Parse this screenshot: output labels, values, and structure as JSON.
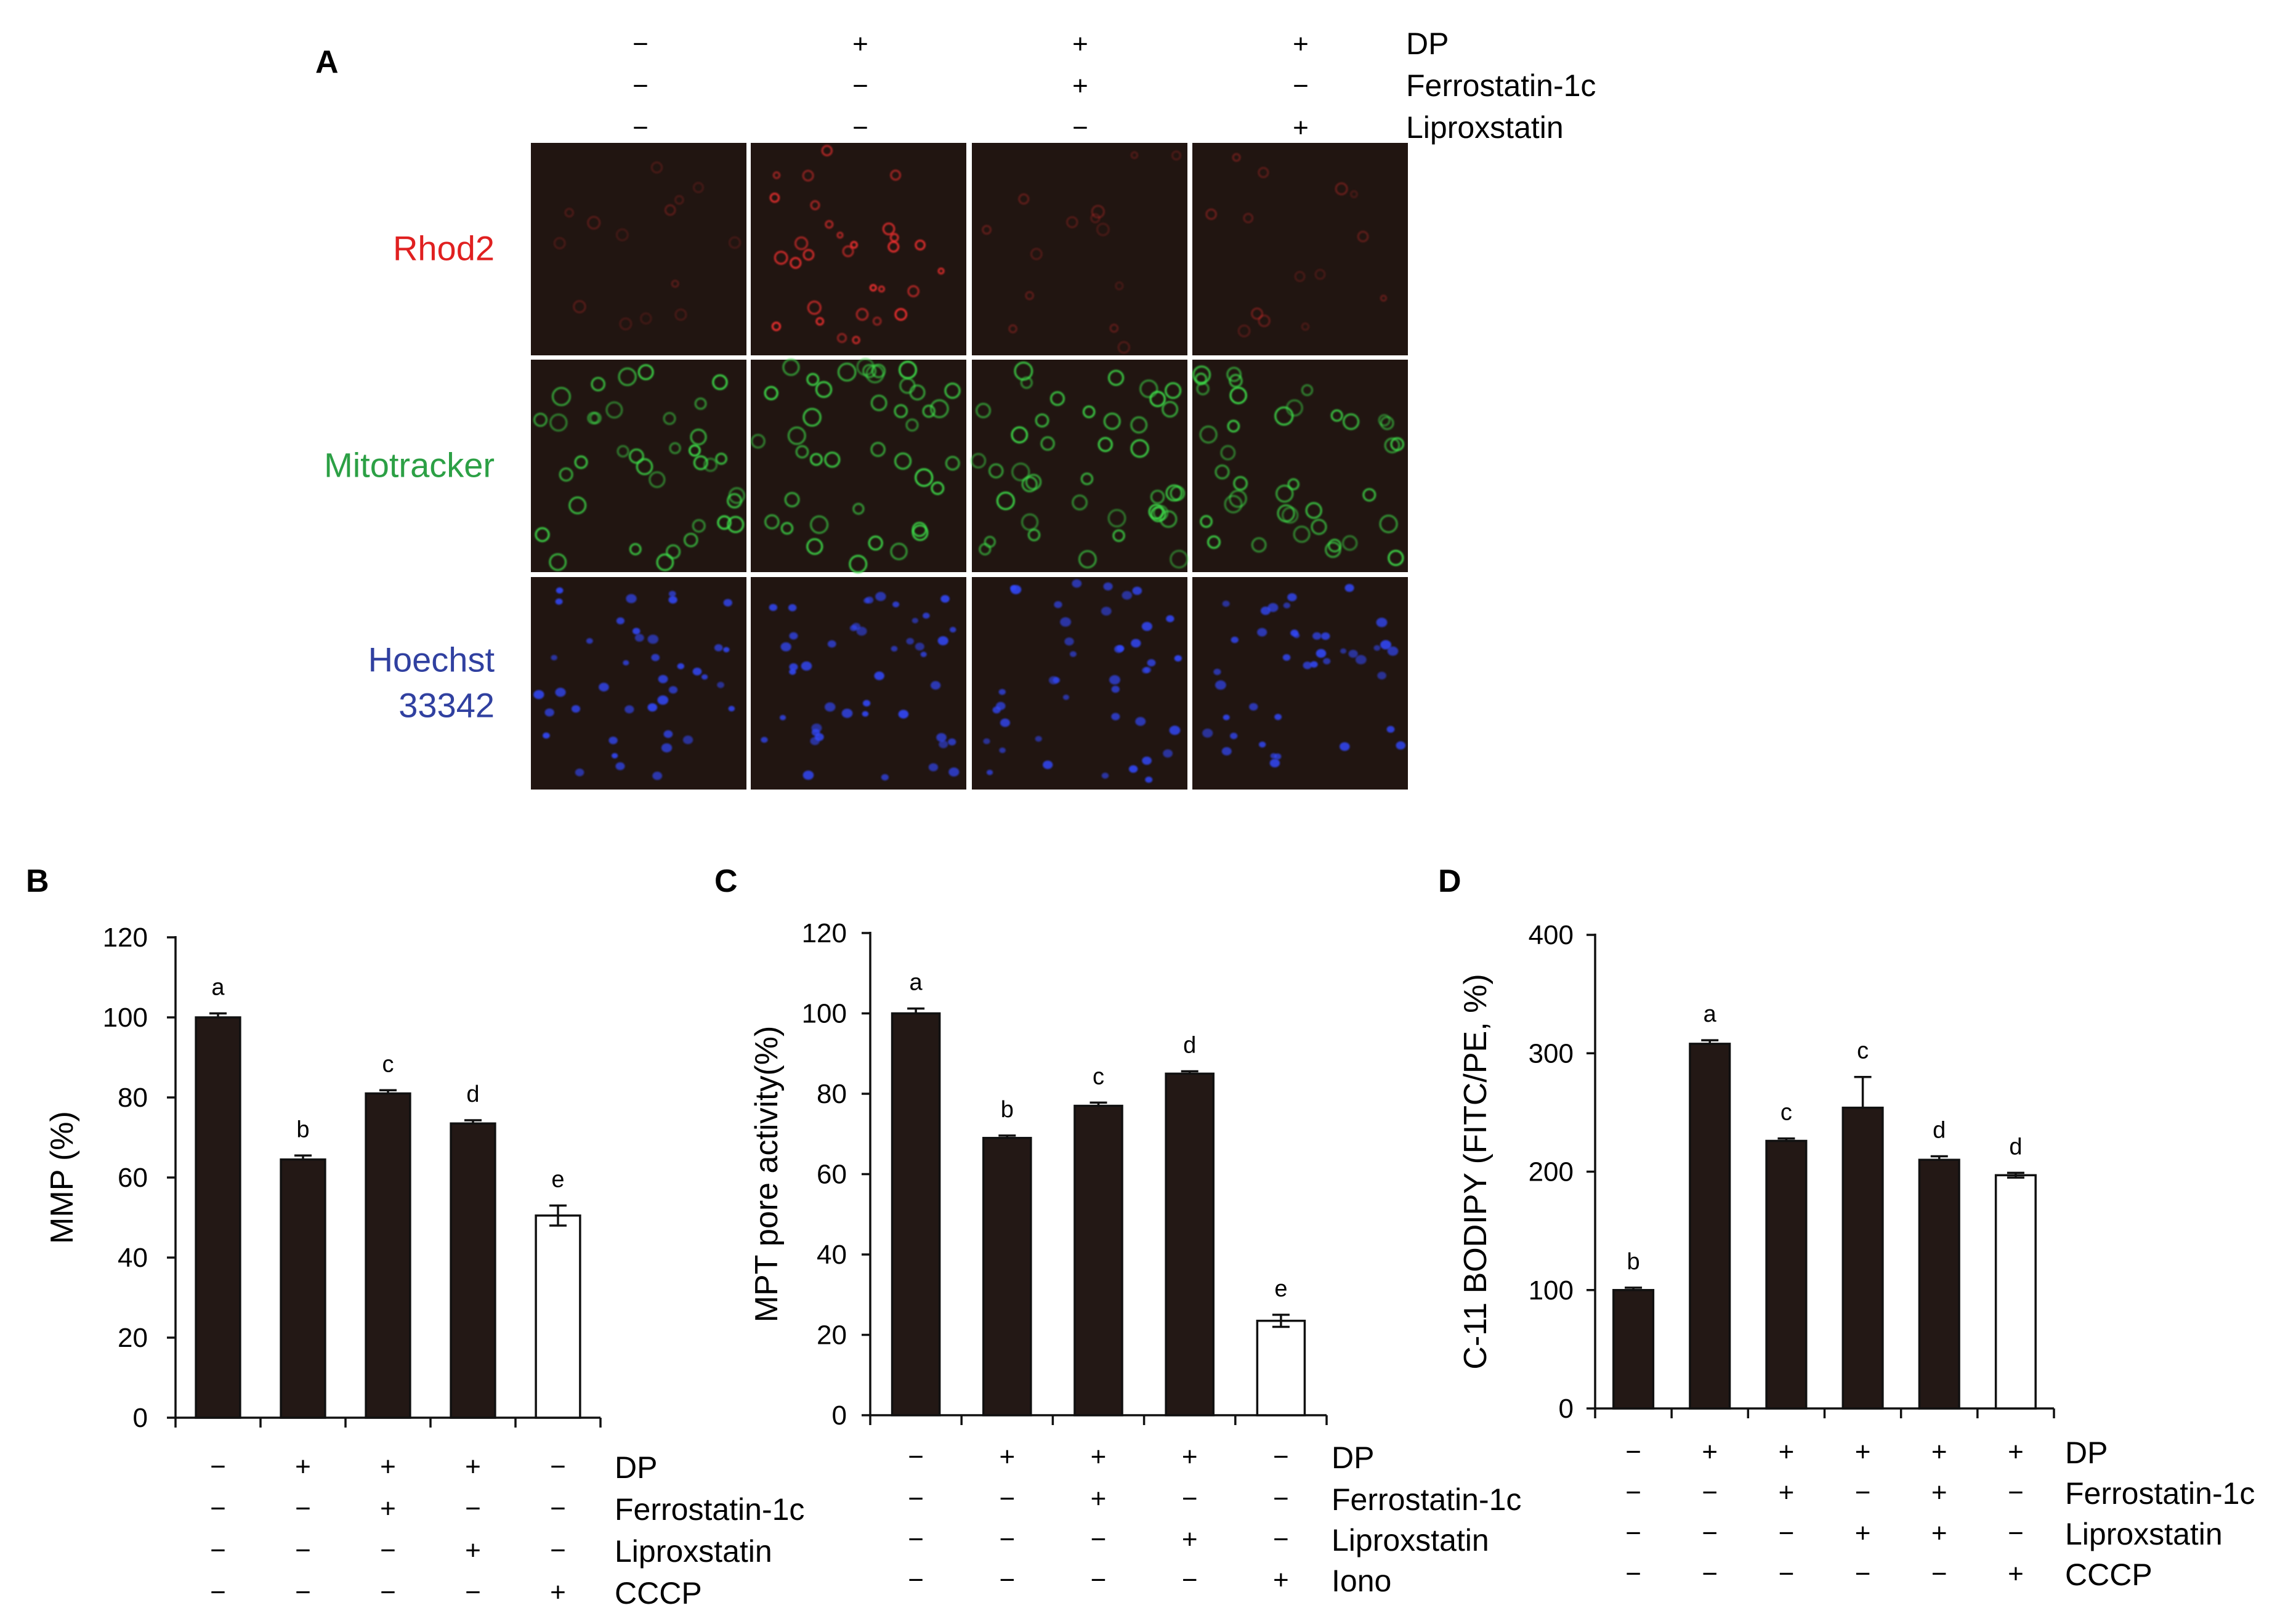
{
  "panel_a": {
    "letter": "A",
    "treatments": [
      {
        "name": "DP",
        "signs": [
          "−",
          "+",
          "+",
          "+"
        ]
      },
      {
        "name": "Ferrostatin-1c",
        "signs": [
          "−",
          "−",
          "+",
          "−"
        ]
      },
      {
        "name": "Liproxstatin",
        "signs": [
          "−",
          "−",
          "−",
          "+"
        ]
      }
    ],
    "rows": [
      {
        "label_lines": [
          "Rhod2"
        ],
        "color": "#e02020",
        "cell_color": "#ff3030"
      },
      {
        "label_lines": [
          "Mitotracker"
        ],
        "color": "#2ca045",
        "cell_color": "#3ddc4a"
      },
      {
        "label_lines": [
          "Hoechst",
          "33342"
        ],
        "color": "#3040a0",
        "cell_color": "#3348ff"
      }
    ],
    "image_background": "#211511"
  },
  "chart_data": [
    {
      "letter": "B",
      "type": "bar",
      "ylabel": "MMP (%)",
      "ylim": [
        0,
        120
      ],
      "yticks": [
        0,
        20,
        40,
        60,
        80,
        100,
        120
      ],
      "values": [
        100,
        64.5,
        81,
        73.5,
        50.5
      ],
      "errors": [
        1,
        1,
        0.8,
        0.8,
        2.5
      ],
      "letters": [
        "a",
        "b",
        "c",
        "d",
        "e"
      ],
      "fills": [
        "#231815",
        "#231815",
        "#231815",
        "#231815",
        "#ffffff"
      ],
      "treatments": [
        {
          "name": "DP",
          "signs": [
            "−",
            "+",
            "+",
            "+",
            "−"
          ]
        },
        {
          "name": "Ferrostatin-1c",
          "signs": [
            "−",
            "−",
            "+",
            "−",
            "−"
          ]
        },
        {
          "name": "Liproxstatin",
          "signs": [
            "−",
            "−",
            "−",
            "+",
            "−"
          ]
        },
        {
          "name": "CCCP",
          "signs": [
            "−",
            "−",
            "−",
            "−",
            "+"
          ]
        }
      ]
    },
    {
      "letter": "C",
      "type": "bar",
      "ylabel": "MPT pore activity(%)",
      "ylim": [
        0,
        120
      ],
      "yticks": [
        0,
        20,
        40,
        60,
        80,
        100,
        120
      ],
      "values": [
        100,
        69,
        77,
        85,
        23.5
      ],
      "errors": [
        1.2,
        0.6,
        0.8,
        0.6,
        1.5
      ],
      "letters": [
        "a",
        "b",
        "c",
        "d",
        "e"
      ],
      "fills": [
        "#231815",
        "#231815",
        "#231815",
        "#231815",
        "#ffffff"
      ],
      "treatments": [
        {
          "name": "DP",
          "signs": [
            "−",
            "+",
            "+",
            "+",
            "−"
          ]
        },
        {
          "name": "Ferrostatin-1c",
          "signs": [
            "−",
            "−",
            "+",
            "−",
            "−"
          ]
        },
        {
          "name": "Liproxstatin",
          "signs": [
            "−",
            "−",
            "−",
            "+",
            "−"
          ]
        },
        {
          "name": "Iono",
          "signs": [
            "−",
            "−",
            "−",
            "−",
            "+"
          ]
        }
      ]
    },
    {
      "letter": "D",
      "type": "bar",
      "ylabel": "C-11 BODIPY (FITC/PE, %)",
      "ylim": [
        0,
        400
      ],
      "yticks": [
        0,
        100,
        200,
        300,
        400
      ],
      "values": [
        100,
        308,
        226,
        254,
        210,
        197
      ],
      "errors": [
        2,
        3,
        2,
        26,
        3,
        2
      ],
      "letters": [
        "b",
        "a",
        "c",
        "c",
        "d",
        "d"
      ],
      "fills": [
        "#231815",
        "#231815",
        "#231815",
        "#231815",
        "#231815",
        "#ffffff"
      ],
      "treatments": [
        {
          "name": "DP",
          "signs": [
            "−",
            "+",
            "+",
            "+",
            "+",
            "+"
          ]
        },
        {
          "name": "Ferrostatin-1c",
          "signs": [
            "−",
            "−",
            "+",
            "−",
            "+",
            "−"
          ]
        },
        {
          "name": "Liproxstatin",
          "signs": [
            "−",
            "−",
            "−",
            "+",
            "+",
            "−"
          ]
        },
        {
          "name": "CCCP",
          "signs": [
            "−",
            "−",
            "−",
            "−",
            "−",
            "+"
          ]
        }
      ]
    }
  ]
}
